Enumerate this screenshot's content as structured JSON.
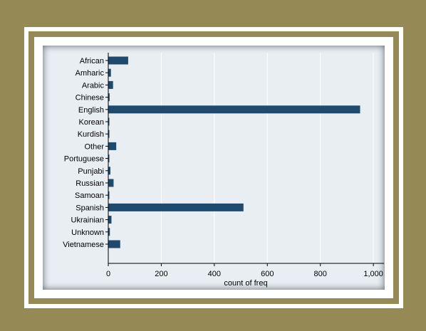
{
  "chart_data": {
    "type": "bar",
    "orientation": "horizontal",
    "categories": [
      "African",
      "Amharic",
      "Arabic",
      "Chinese",
      "English",
      "Korean",
      "Kurdish",
      "Other",
      "Portuguese",
      "Punjabi",
      "Russian",
      "Samoan",
      "Spanish",
      "Ukrainian",
      "Unknown",
      "Vietnamese"
    ],
    "values": [
      75,
      10,
      18,
      5,
      950,
      2,
      2,
      30,
      3,
      8,
      20,
      2,
      510,
      12,
      6,
      45
    ],
    "xlabel": "count of freq",
    "xlim": [
      0,
      1040
    ],
    "xticks": [
      0,
      200,
      400,
      600,
      800,
      1000
    ],
    "xtick_labels": [
      "0",
      "200",
      "400",
      "600",
      "800",
      "1,000"
    ],
    "grid": "vertical",
    "colors": {
      "bar": "#1f4a6e",
      "plot_bg": "#eaeff4",
      "frame": "#958a55"
    }
  }
}
